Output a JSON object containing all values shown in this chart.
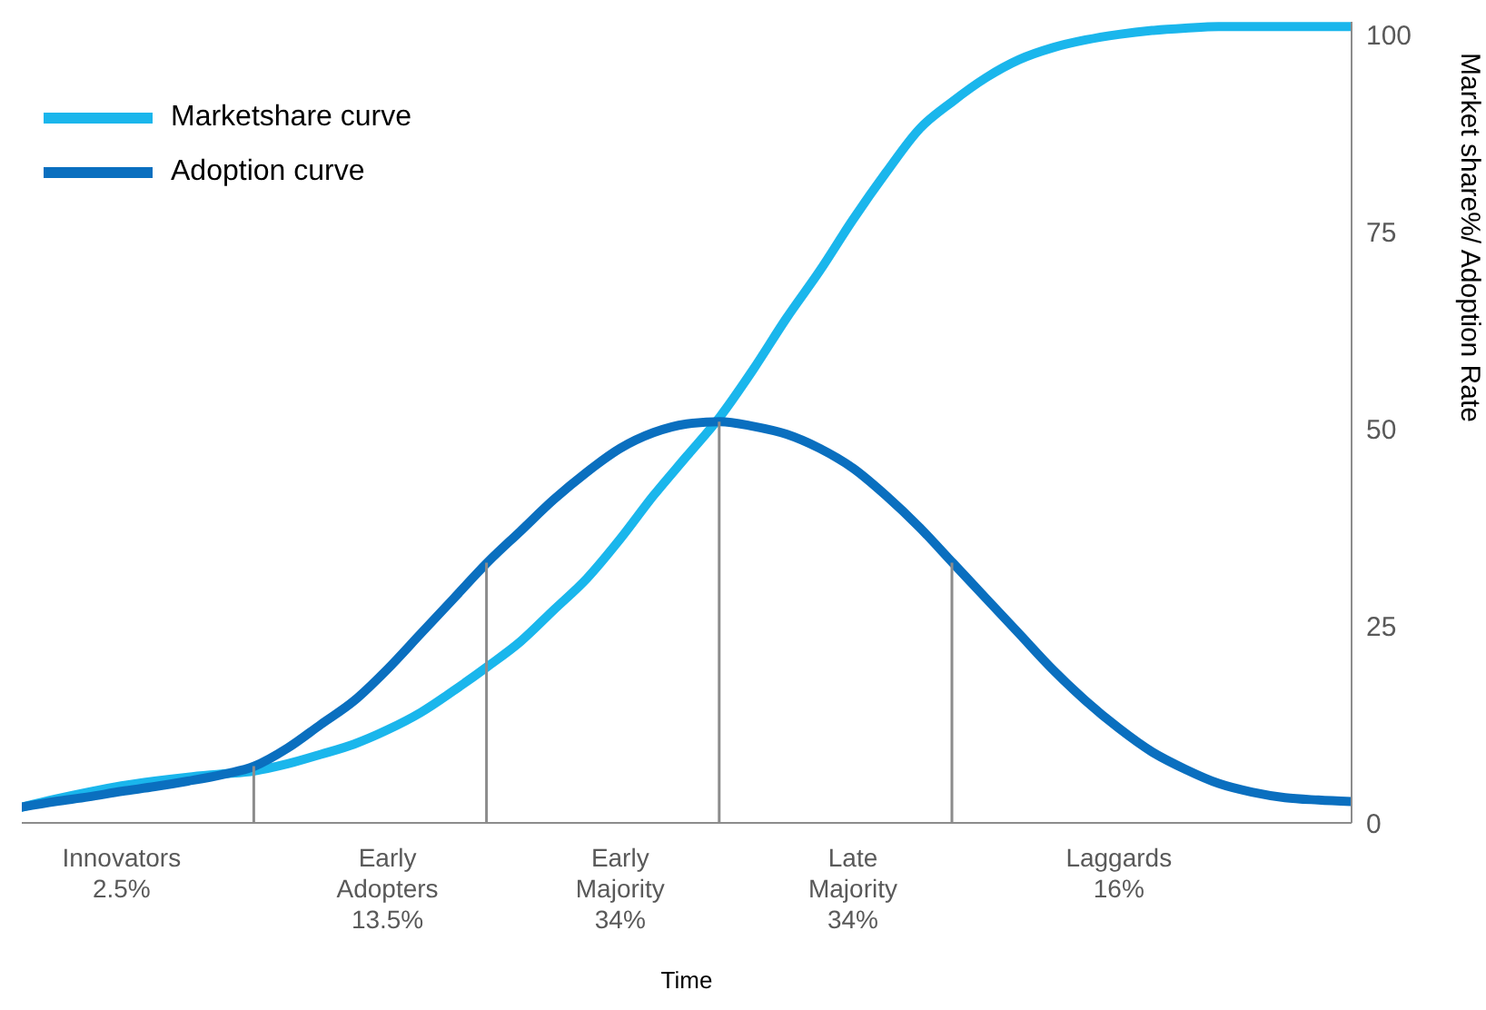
{
  "chart_data": {
    "type": "line",
    "xlabel": "Time",
    "ylabel": "Market share%/ Adoption Rate",
    "ylim": [
      0,
      101.6
    ],
    "yticks": [
      0,
      25,
      50,
      75,
      100
    ],
    "categories": [
      null,
      null,
      null,
      "Innovators\n2.5%",
      null,
      null,
      null,
      null,
      null,
      null,
      null,
      "Early\nAdopters\n13.5%",
      null,
      null,
      null,
      null,
      null,
      null,
      "Early\nMajority\n34%",
      null,
      null,
      null,
      null,
      null,
      null,
      "Late\nMajority\n34%",
      null,
      null,
      null,
      null,
      null,
      null,
      null,
      "Laggards\n16%",
      null,
      null,
      null,
      null,
      null,
      null,
      null
    ],
    "series": [
      {
        "name": "Marketshare curve",
        "color": "#1ab6ec",
        "values": [
          2,
          3,
          3.9,
          4.7,
          5.3,
          5.8,
          6.2,
          6.6,
          7.5,
          8.7,
          10,
          11.8,
          14,
          16.8,
          19.8,
          23,
          27,
          31,
          36,
          41.5,
          46.5,
          51.5,
          57.5,
          64,
          70,
          76.5,
          82.5,
          88,
          91.5,
          94.5,
          96.8,
          98.3,
          99.3,
          100,
          100.5,
          100.8,
          101,
          101,
          101,
          101,
          101
        ]
      },
      {
        "name": "Adoption curve",
        "color": "#0a6fbf",
        "values": [
          2,
          2.7,
          3.3,
          4,
          4.6,
          5.3,
          6.1,
          7.2,
          9.5,
          12.5,
          15.5,
          19.5,
          24,
          28.5,
          33,
          37,
          41,
          44.5,
          47.5,
          49.5,
          50.6,
          50.9,
          50.3,
          49.3,
          47.5,
          45,
          41.5,
          37.5,
          33,
          28.5,
          24,
          19.5,
          15.5,
          12,
          9,
          6.8,
          5,
          3.9,
          3.2,
          2.9,
          2.7
        ]
      },
      {
        "type": "bar",
        "color": "#8c8c8c",
        "values": [
          null,
          null,
          null,
          null,
          null,
          null,
          null,
          7.2,
          null,
          null,
          null,
          null,
          null,
          null,
          33,
          null,
          null,
          null,
          null,
          null,
          null,
          50.9,
          null,
          null,
          null,
          null,
          null,
          null,
          33,
          null,
          null,
          null,
          null,
          null,
          null,
          null,
          null,
          null,
          null,
          null,
          null
        ]
      }
    ],
    "legend": "top left",
    "marker": "none",
    "line_style": "solid"
  }
}
